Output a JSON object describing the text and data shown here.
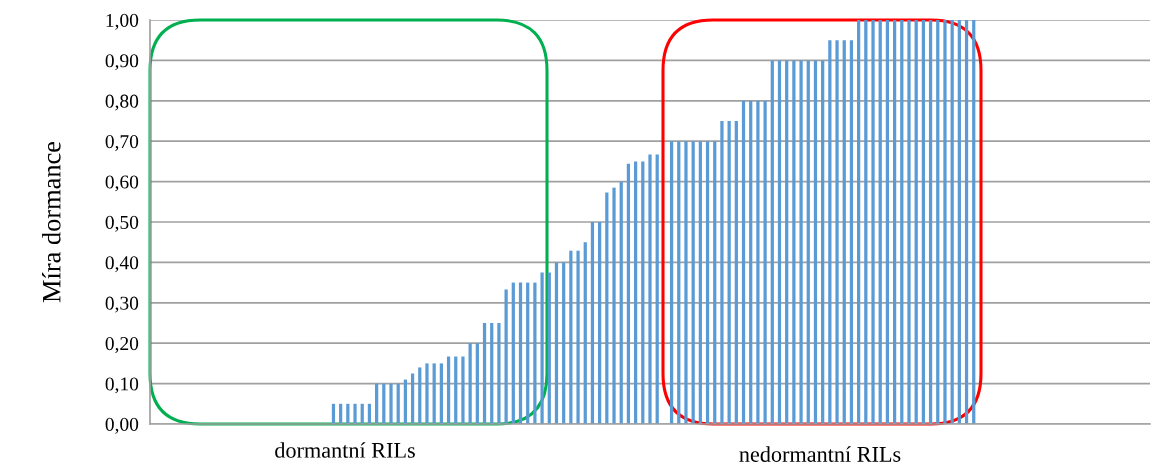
{
  "chart_data": {
    "type": "bar",
    "ylabel": "Míra dormance",
    "categories": [
      null,
      null,
      null,
      null,
      null,
      null,
      null,
      null,
      null,
      null,
      null,
      null,
      null,
      null,
      null,
      null,
      null,
      null,
      null,
      null,
      null,
      null,
      null,
      null,
      null,
      null,
      null,
      null,
      null,
      null,
      null,
      null,
      null,
      null,
      null,
      null,
      null,
      null,
      null,
      null,
      null,
      null,
      null,
      null,
      null,
      null,
      null,
      null,
      null,
      null,
      null,
      null,
      null,
      null,
      null,
      null,
      null,
      null,
      null,
      null,
      null,
      null,
      null,
      null,
      null,
      null,
      null,
      null,
      null,
      null,
      null,
      null,
      null,
      null,
      null,
      null,
      null,
      null,
      null,
      null,
      null,
      null,
      null,
      null,
      null,
      null,
      null,
      null,
      null,
      null,
      null,
      null,
      null,
      null,
      null,
      null,
      null,
      null,
      null,
      null,
      null,
      null,
      null,
      null,
      null,
      null,
      null,
      null,
      null,
      null,
      null,
      null,
      null,
      null,
      null,
      null,
      null,
      null,
      null,
      null,
      null,
      null,
      null,
      null,
      null,
      null,
      null,
      null,
      null,
      null,
      null,
      null,
      null,
      null,
      null,
      null,
      null,
      null,
      null
    ],
    "values": [
      0,
      0,
      0,
      0,
      0,
      0,
      0,
      0,
      0,
      0,
      0,
      0,
      0,
      0,
      0,
      0,
      0,
      0,
      0,
      0,
      0,
      0,
      0,
      0,
      0,
      0.05,
      0.05,
      0.05,
      0.05,
      0.05,
      0.05,
      0.1,
      0.1,
      0.1,
      0.1,
      0.11,
      0.125,
      0.14,
      0.15,
      0.15,
      0.15,
      0.167,
      0.167,
      0.167,
      0.2,
      0.2,
      0.25,
      0.25,
      0.25,
      0.333,
      0.35,
      0.35,
      0.35,
      0.35,
      0.375,
      0.375,
      0.4,
      0.4,
      0.429,
      0.429,
      0.45,
      0.5,
      0.5,
      0.573,
      0.585,
      0.6,
      0.644,
      0.65,
      0.65,
      0.667,
      0.667,
      null,
      0.7,
      0.7,
      0.7,
      0.7,
      0.7,
      0.7,
      0.7,
      0.75,
      0.75,
      0.75,
      0.8,
      0.8,
      0.8,
      0.8,
      0.9,
      0.9,
      0.9,
      0.9,
      0.9,
      0.9,
      0.9,
      0.9,
      0.95,
      0.95,
      0.95,
      0.95,
      1,
      1,
      1,
      1,
      1,
      1,
      1,
      1,
      1,
      1,
      1,
      1,
      1,
      1,
      1,
      1,
      1,
      0,
      0,
      0,
      0,
      0,
      0,
      0,
      0,
      0,
      0,
      0,
      0,
      0,
      0,
      0,
      0,
      0,
      0,
      0,
      0,
      0,
      0,
      0,
      0
    ],
    "color": "#5b9bd5",
    "ylim": [
      0,
      1
    ],
    "yticks": [
      {
        "value": 0,
        "label": "0,00"
      },
      {
        "value": 0.1,
        "label": "0,10"
      },
      {
        "value": 0.2,
        "label": "0,20"
      },
      {
        "value": 0.3,
        "label": "0,30"
      },
      {
        "value": 0.4,
        "label": "0,40"
      },
      {
        "value": 0.5,
        "label": "0,50"
      },
      {
        "value": 0.6,
        "label": "0,60"
      },
      {
        "value": 0.7,
        "label": "0,70"
      },
      {
        "value": 0.8,
        "label": "0,80"
      },
      {
        "value": 0.9,
        "label": "0,90"
      },
      {
        "value": 1,
        "label": "1,00"
      }
    ],
    "grid": "y",
    "annotations": [
      "dormantní RILs",
      "nedormantní RILs"
    ]
  }
}
